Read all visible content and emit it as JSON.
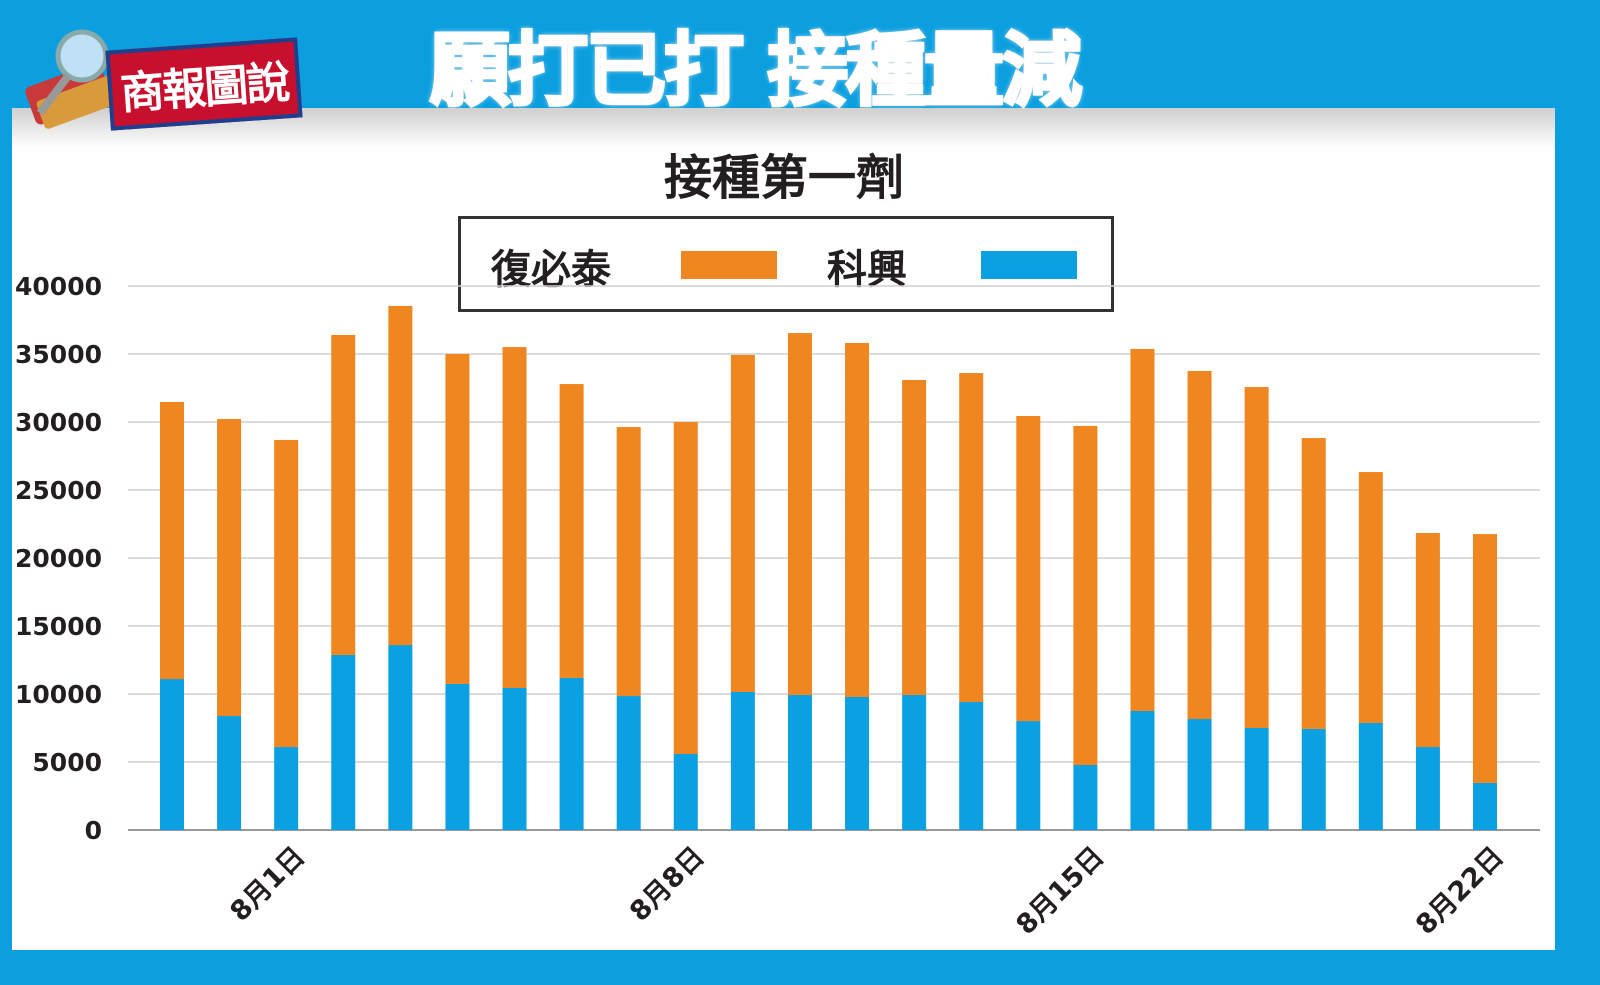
{
  "header": {
    "brand": "商報圖說",
    "headline": "願打已打 接種量減"
  },
  "colors": {
    "frame": "#0b9fe0",
    "comirnaty": "#ef861f",
    "sinovac": "#0aa0e2"
  },
  "chart_data": {
    "type": "bar",
    "stacked": true,
    "title": "接種第一劑",
    "xlabel": "",
    "ylabel": "",
    "ylim": [
      0,
      40000
    ],
    "yticks": [
      0,
      5000,
      10000,
      15000,
      20000,
      25000,
      30000,
      35000,
      40000
    ],
    "grid": true,
    "legend_position": "top-center",
    "x_tick_labels": [
      {
        "index": 2,
        "label": "8月1日"
      },
      {
        "index": 9,
        "label": "8月8日"
      },
      {
        "index": 16,
        "label": "8月15日"
      },
      {
        "index": 23,
        "label": "8月22日"
      }
    ],
    "series": [
      {
        "name": "科興",
        "color": "#0aa0e2",
        "values": [
          11100,
          8380,
          6100,
          12870,
          13600,
          10740,
          10440,
          11180,
          9850,
          5590,
          10150,
          9930,
          9780,
          9930,
          9410,
          8010,
          4780,
          8750,
          8160,
          7500,
          7430,
          7870,
          6100,
          3460
        ]
      },
      {
        "name": "復必泰",
        "color": "#ef861f",
        "values": [
          20370,
          21840,
          22580,
          23530,
          24930,
          24260,
          25070,
          21610,
          19780,
          24410,
          24780,
          26610,
          26030,
          23160,
          24190,
          22430,
          24930,
          26620,
          25590,
          25070,
          21390,
          18450,
          15740,
          18300
        ]
      }
    ]
  }
}
